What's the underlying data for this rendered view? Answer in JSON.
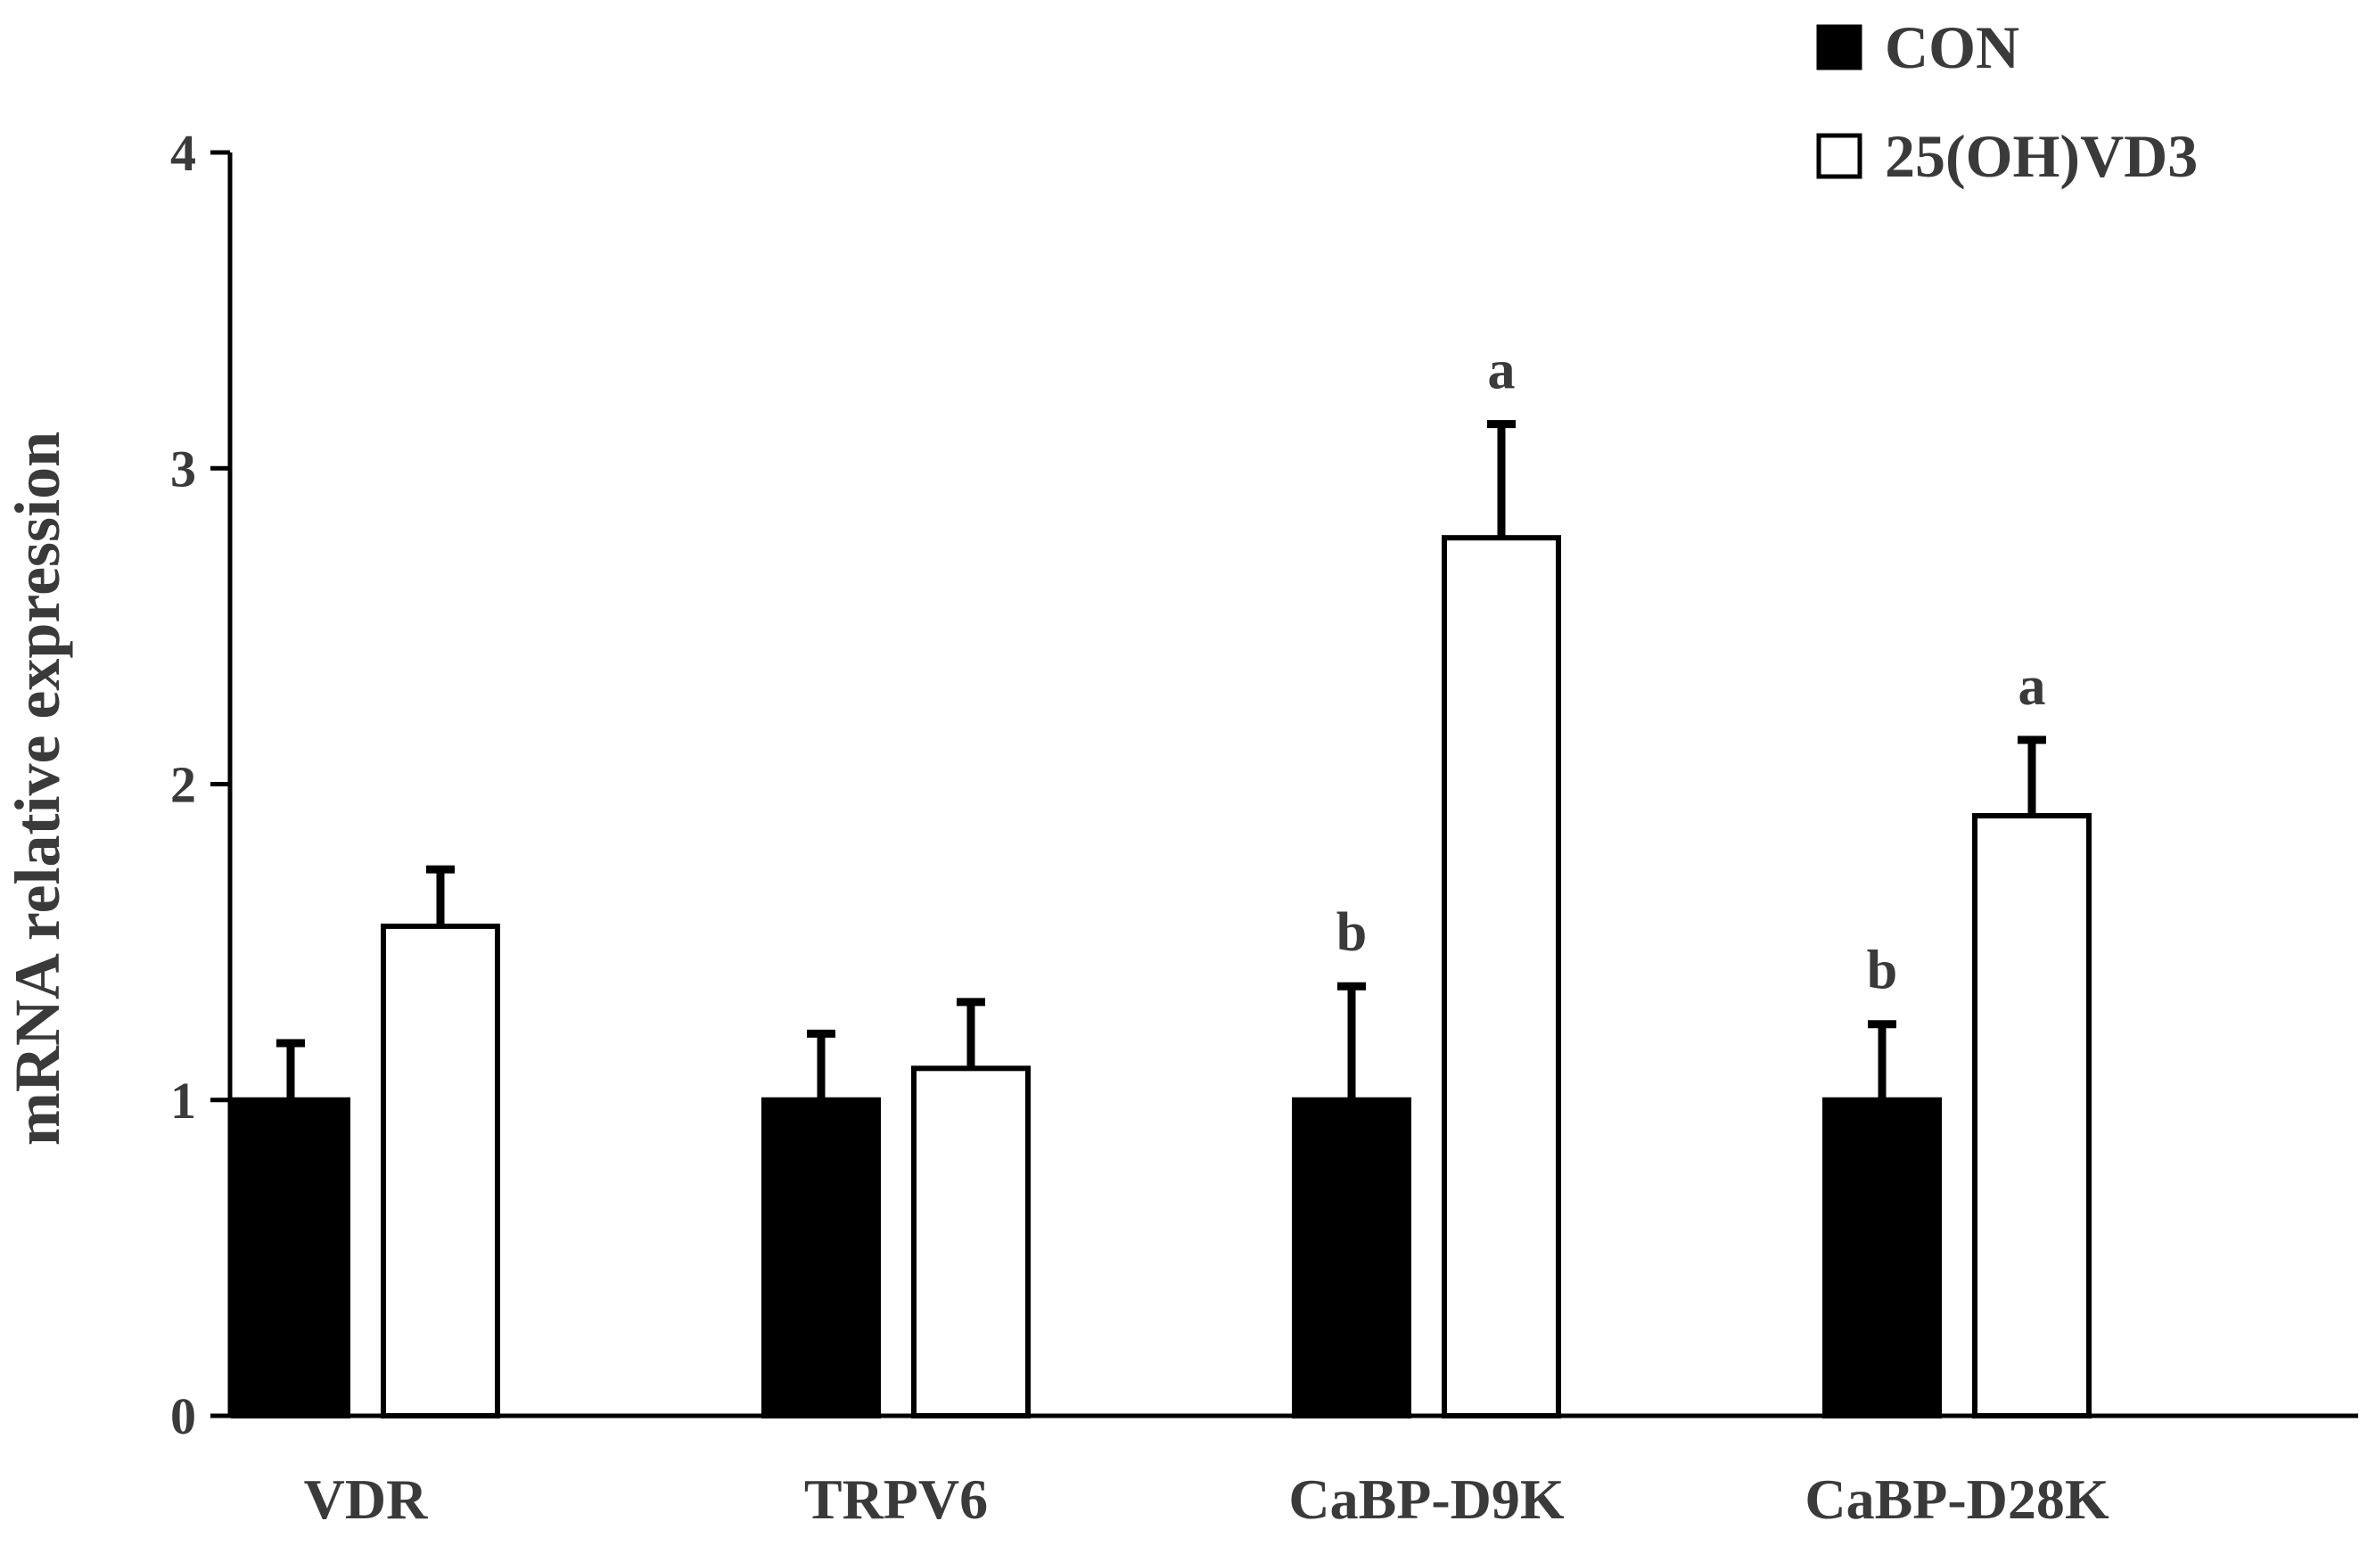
{
  "chart_data": {
    "type": "bar",
    "title": "",
    "xlabel": "",
    "ylabel": "mRNA relative expression",
    "ylim": [
      0,
      4
    ],
    "yticks": [
      0,
      1,
      2,
      3,
      4
    ],
    "ytick_labels": [
      "0",
      "1",
      "2",
      "3",
      "4"
    ],
    "categories": [
      "VDR",
      "TRPV6",
      "CaBP-D9K",
      "CaBP-D28K"
    ],
    "series": [
      {
        "name": "CON",
        "fill": "#000000",
        "values": [
          1.0,
          1.0,
          1.0,
          1.0
        ],
        "errors": [
          0.18,
          0.21,
          0.36,
          0.24
        ],
        "significance": [
          "",
          "",
          "b",
          "b"
        ]
      },
      {
        "name": "25(OH)VD3",
        "fill": "#ffffff",
        "values": [
          1.55,
          1.1,
          2.78,
          1.9
        ],
        "errors": [
          0.18,
          0.21,
          0.36,
          0.24
        ],
        "significance": [
          "",
          "",
          "a",
          "a"
        ]
      }
    ],
    "legend_position": "top-right",
    "grid": false
  }
}
